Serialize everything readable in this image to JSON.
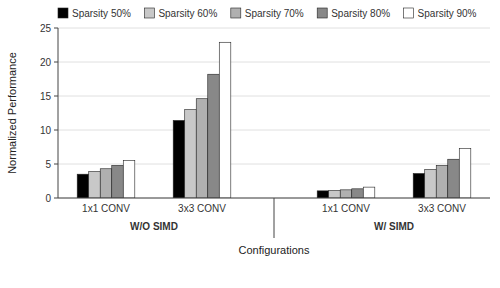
{
  "chart_data": {
    "type": "bar",
    "xlabel": "Configurations",
    "ylabel": "Normalized Performance",
    "categories": [
      "1x1 CONV",
      "3x3 CONV",
      "1x1 CONV",
      "3x3 CONV"
    ],
    "section_labels": [
      "W/O SIMD",
      "W/ SIMD"
    ],
    "ylim": [
      0,
      25
    ],
    "yticks": [
      0,
      5,
      10,
      15,
      20,
      25
    ],
    "grid": true,
    "legend": "upper left",
    "series": [
      {
        "name": "Sparsity 50%",
        "color": "#000000",
        "values": [
          3.5,
          11.4,
          1.05,
          3.6
        ]
      },
      {
        "name": "Sparsity 60%",
        "color": "#c8c8c8",
        "values": [
          3.9,
          13.0,
          1.1,
          4.2
        ]
      },
      {
        "name": "Sparsity 70%",
        "color": "#b0b0b0",
        "values": [
          4.3,
          14.6,
          1.2,
          4.8
        ]
      },
      {
        "name": "Sparsity 80%",
        "color": "#888888",
        "values": [
          4.8,
          18.2,
          1.35,
          5.7
        ]
      },
      {
        "name": "Sparsity 90%",
        "color": "#ffffff",
        "values": [
          5.5,
          22.9,
          1.6,
          7.3
        ]
      }
    ]
  }
}
